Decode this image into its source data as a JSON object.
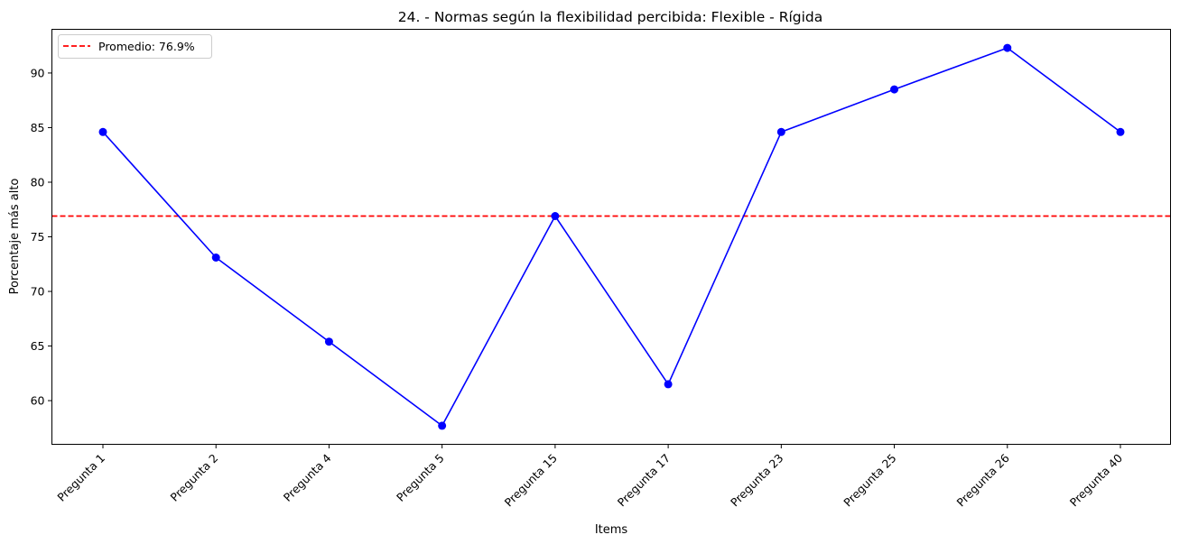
{
  "chart_data": {
    "type": "line",
    "title": "24. - Normas según la flexibilidad percibida: Flexible - Rígida",
    "xlabel": "Items",
    "ylabel": "Porcentaje más alto",
    "categories": [
      "Pregunta 1",
      "Pregunta 2",
      "Pregunta 4",
      "Pregunta 5",
      "Pregunta 15",
      "Pregunta 17",
      "Pregunta 23",
      "Pregunta 25",
      "Pregunta 26",
      "Pregunta 40"
    ],
    "series": [
      {
        "name": "",
        "color": "#0000ff",
        "marker": "circle",
        "values": [
          84.6,
          73.1,
          65.4,
          57.7,
          76.9,
          61.5,
          84.6,
          88.5,
          92.3,
          84.6
        ]
      }
    ],
    "reference_line": {
      "label": "Promedio: 76.9%",
      "value": 76.9,
      "color": "#ff0000",
      "style": "dashed"
    },
    "ylim": [
      56.0,
      94.0
    ],
    "yticks": [
      60,
      65,
      70,
      75,
      80,
      85,
      90
    ],
    "ytick_labels": [
      "60",
      "65",
      "70",
      "75",
      "80",
      "85",
      "90"
    ],
    "legend_position": "top-left",
    "grid": false
  }
}
